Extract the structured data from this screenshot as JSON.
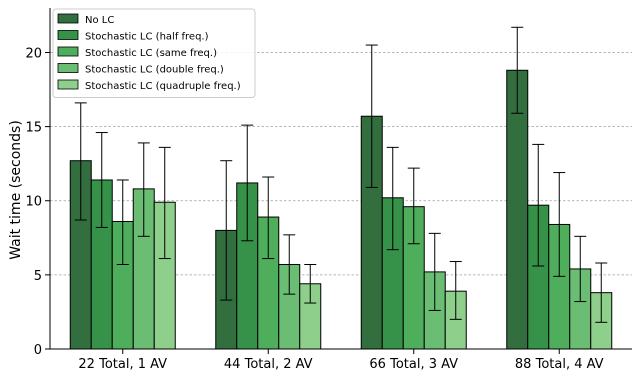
{
  "chart_data": {
    "type": "bar",
    "title": "",
    "xlabel": "",
    "ylabel": "Wait time (seconds)",
    "ylim": [
      0,
      23
    ],
    "yticks": [
      0,
      5,
      10,
      15,
      20
    ],
    "grid": "horizontal-dashed",
    "legend_position": "top-left",
    "categories": [
      "22 Total, 1 AV",
      "44 Total, 2 AV",
      "66 Total, 3 AV",
      "88 Total, 4 AV"
    ],
    "series": [
      {
        "name": "No LC",
        "color": "#336e3f",
        "values": [
          12.7,
          8.0,
          15.7,
          18.8
        ],
        "error_low": [
          8.7,
          3.3,
          10.9,
          15.9
        ],
        "error_high": [
          16.6,
          12.7,
          20.5,
          21.7
        ]
      },
      {
        "name": "Stochastic LC (half freq.)",
        "color": "#369149",
        "values": [
          11.4,
          11.2,
          10.2,
          9.7
        ],
        "error_low": [
          8.2,
          7.3,
          6.7,
          5.6
        ],
        "error_high": [
          14.6,
          15.1,
          13.6,
          13.8
        ]
      },
      {
        "name": "Stochastic LC (same freq.)",
        "color": "#4eae5c",
        "values": [
          8.6,
          8.9,
          9.6,
          8.4
        ],
        "error_low": [
          5.7,
          6.1,
          7.1,
          4.9
        ],
        "error_high": [
          11.4,
          11.6,
          12.2,
          11.9
        ]
      },
      {
        "name": "Stochastic LC (double freq.)",
        "color": "#6bbd74",
        "values": [
          10.8,
          5.7,
          5.2,
          5.4
        ],
        "error_low": [
          7.6,
          3.7,
          2.6,
          3.2
        ],
        "error_high": [
          13.9,
          7.7,
          7.8,
          7.6
        ]
      },
      {
        "name": "Stochastic LC (quadruple freq.)",
        "color": "#8fcf8c",
        "values": [
          9.9,
          4.4,
          3.9,
          3.8
        ],
        "error_low": [
          6.1,
          3.1,
          2.0,
          1.8
        ],
        "error_high": [
          13.6,
          5.7,
          5.9,
          5.8
        ]
      }
    ]
  }
}
